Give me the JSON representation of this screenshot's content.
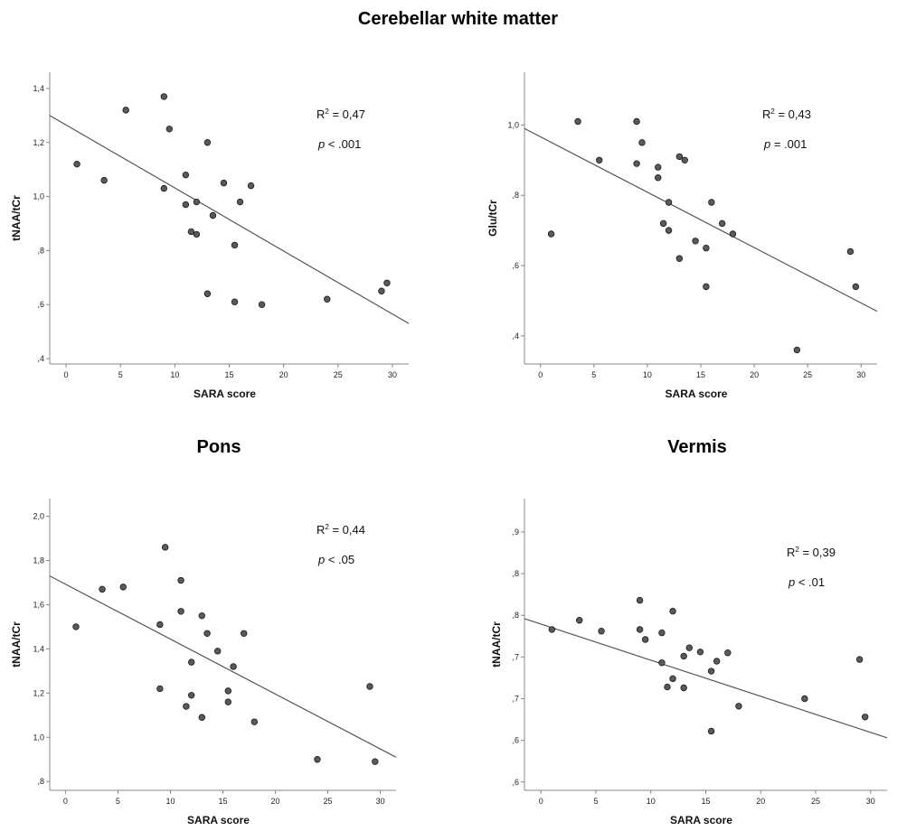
{
  "main_title": "Cerebellar white matter",
  "panel_titles": {
    "pons": "Pons",
    "vermis": "Vermis"
  },
  "chart_data": [
    {
      "type": "scatter",
      "id": "cwm-naa",
      "title": "",
      "xlabel": "SARA score",
      "ylabel": "tNAA/tCr",
      "xlim": [
        -1.5,
        31.5
      ],
      "ylim": [
        0.38,
        1.46
      ],
      "xticks": [
        0,
        5,
        10,
        15,
        20,
        25,
        30
      ],
      "xtick_labels": [
        "0",
        "5",
        "10",
        "15",
        "20",
        "25",
        "30"
      ],
      "yticks": [
        0.4,
        0.6,
        0.8,
        1.0,
        1.2,
        1.4
      ],
      "ytick_labels": [
        ",4",
        ",6",
        ",8",
        "1,0",
        "1,2",
        "1,4"
      ],
      "annotation_r2": "= 0,47",
      "annotation_p": "< .001",
      "fit_line": {
        "x": [
          -1.5,
          31.5
        ],
        "y": [
          1.3,
          0.53
        ]
      },
      "points": [
        {
          "x": 1,
          "y": 1.12
        },
        {
          "x": 3.5,
          "y": 1.06
        },
        {
          "x": 5.5,
          "y": 1.32
        },
        {
          "x": 9,
          "y": 1.37
        },
        {
          "x": 9.5,
          "y": 1.25
        },
        {
          "x": 9,
          "y": 1.03
        },
        {
          "x": 11,
          "y": 1.08
        },
        {
          "x": 11,
          "y": 0.97
        },
        {
          "x": 11.5,
          "y": 0.87
        },
        {
          "x": 12,
          "y": 0.98
        },
        {
          "x": 12,
          "y": 0.86
        },
        {
          "x": 13,
          "y": 1.2
        },
        {
          "x": 13.5,
          "y": 0.93
        },
        {
          "x": 14.5,
          "y": 1.05
        },
        {
          "x": 15.5,
          "y": 0.82
        },
        {
          "x": 16,
          "y": 0.98
        },
        {
          "x": 17,
          "y": 1.04
        },
        {
          "x": 13,
          "y": 0.64
        },
        {
          "x": 15.5,
          "y": 0.61
        },
        {
          "x": 18,
          "y": 0.6
        },
        {
          "x": 24,
          "y": 0.62
        },
        {
          "x": 29,
          "y": 0.65
        },
        {
          "x": 29.5,
          "y": 0.68
        }
      ]
    },
    {
      "type": "scatter",
      "id": "cwm-glu",
      "title": "",
      "xlabel": "SARA score",
      "ylabel": "Glu/tCr",
      "xlim": [
        -1.5,
        31.5
      ],
      "ylim": [
        0.32,
        1.15
      ],
      "xticks": [
        0,
        5,
        10,
        15,
        20,
        25,
        30
      ],
      "xtick_labels": [
        "0",
        "5",
        "10",
        "15",
        "20",
        "25",
        "30"
      ],
      "yticks": [
        0.4,
        0.6,
        0.8,
        1.0
      ],
      "ytick_labels": [
        ",4",
        ",6",
        ",8",
        "1,0"
      ],
      "annotation_r2": "= 0,43",
      "annotation_p": "= .001",
      "fit_line": {
        "x": [
          -1.5,
          31.5
        ],
        "y": [
          0.99,
          0.47
        ]
      },
      "points": [
        {
          "x": 1,
          "y": 0.69
        },
        {
          "x": 3.5,
          "y": 1.01
        },
        {
          "x": 5.5,
          "y": 0.9
        },
        {
          "x": 9,
          "y": 1.01
        },
        {
          "x": 9.5,
          "y": 0.95
        },
        {
          "x": 9,
          "y": 0.89
        },
        {
          "x": 11,
          "y": 0.88
        },
        {
          "x": 11,
          "y": 0.85
        },
        {
          "x": 11.5,
          "y": 0.72
        },
        {
          "x": 12,
          "y": 0.78
        },
        {
          "x": 12,
          "y": 0.7
        },
        {
          "x": 13,
          "y": 0.91
        },
        {
          "x": 13.5,
          "y": 0.9
        },
        {
          "x": 13,
          "y": 0.62
        },
        {
          "x": 14.5,
          "y": 0.67
        },
        {
          "x": 15.5,
          "y": 0.65
        },
        {
          "x": 15.5,
          "y": 0.54
        },
        {
          "x": 16,
          "y": 0.78
        },
        {
          "x": 17,
          "y": 0.72
        },
        {
          "x": 18,
          "y": 0.69
        },
        {
          "x": 24,
          "y": 0.36
        },
        {
          "x": 29,
          "y": 0.64
        },
        {
          "x": 29.5,
          "y": 0.54
        }
      ]
    },
    {
      "type": "scatter",
      "id": "pons-naa",
      "title": "Pons",
      "xlabel": "SARA score",
      "ylabel": "tNAA/tCr",
      "xlim": [
        -1.5,
        31.5
      ],
      "ylim": [
        0.76,
        2.08
      ],
      "xticks": [
        0,
        5,
        10,
        15,
        20,
        25,
        30
      ],
      "xtick_labels": [
        "0",
        "5",
        "10",
        "15",
        "20",
        "25",
        "30"
      ],
      "yticks": [
        0.8,
        1.0,
        1.2,
        1.4,
        1.6,
        1.8,
        2.0
      ],
      "ytick_labels": [
        ",8",
        "1,0",
        "1,2",
        "1,4",
        "1,6",
        "1,8",
        "2,0"
      ],
      "annotation_r2": "= 0,44",
      "annotation_p": "< .05",
      "fit_line": {
        "x": [
          -1.5,
          31.5
        ],
        "y": [
          1.73,
          0.91
        ]
      },
      "points": [
        {
          "x": 1,
          "y": 1.5
        },
        {
          "x": 3.5,
          "y": 1.67
        },
        {
          "x": 5.5,
          "y": 1.68
        },
        {
          "x": 9,
          "y": 1.51
        },
        {
          "x": 9.5,
          "y": 1.86
        },
        {
          "x": 9,
          "y": 1.22
        },
        {
          "x": 11,
          "y": 1.71
        },
        {
          "x": 11,
          "y": 1.57
        },
        {
          "x": 11.5,
          "y": 1.14
        },
        {
          "x": 12,
          "y": 1.34
        },
        {
          "x": 12,
          "y": 1.19
        },
        {
          "x": 13,
          "y": 1.55
        },
        {
          "x": 13.5,
          "y": 1.47
        },
        {
          "x": 13,
          "y": 1.09
        },
        {
          "x": 14.5,
          "y": 1.39
        },
        {
          "x": 15.5,
          "y": 1.21
        },
        {
          "x": 15.5,
          "y": 1.16
        },
        {
          "x": 16,
          "y": 1.32
        },
        {
          "x": 17,
          "y": 1.47
        },
        {
          "x": 18,
          "y": 1.07
        },
        {
          "x": 24,
          "y": 0.9
        },
        {
          "x": 29,
          "y": 1.23
        },
        {
          "x": 29.5,
          "y": 0.89
        }
      ]
    },
    {
      "type": "scatter",
      "id": "vermis-naa",
      "title": "Vermis",
      "xlabel": "SARA score",
      "ylabel": "tNAA/tCr",
      "xlim": [
        -1.5,
        31.5
      ],
      "ylim": [
        0.59,
        0.94
      ],
      "xticks": [
        0,
        5,
        10,
        15,
        20,
        25,
        30
      ],
      "xtick_labels": [
        "0",
        "5",
        "10",
        "15",
        "20",
        "25",
        "30"
      ],
      "yticks": [
        0.6,
        0.65,
        0.7,
        0.75,
        0.8,
        0.85,
        0.9
      ],
      "ytick_labels": [
        ",6",
        ",6",
        ",7",
        ",7",
        ",8",
        ",8",
        ",9"
      ],
      "annotation_r2": "= 0,39",
      "annotation_p": "< .01",
      "fit_line": {
        "x": [
          -1.5,
          31.5
        ],
        "y": [
          0.796,
          0.653
        ]
      },
      "points": [
        {
          "x": 1,
          "y": 0.783
        },
        {
          "x": 3.5,
          "y": 0.794
        },
        {
          "x": 5.5,
          "y": 0.781
        },
        {
          "x": 9,
          "y": 0.818
        },
        {
          "x": 9,
          "y": 0.783
        },
        {
          "x": 9.5,
          "y": 0.771
        },
        {
          "x": 11,
          "y": 0.779
        },
        {
          "x": 11,
          "y": 0.743
        },
        {
          "x": 11.5,
          "y": 0.714
        },
        {
          "x": 12,
          "y": 0.805
        },
        {
          "x": 12,
          "y": 0.724
        },
        {
          "x": 13,
          "y": 0.751
        },
        {
          "x": 13,
          "y": 0.713
        },
        {
          "x": 13.5,
          "y": 0.761
        },
        {
          "x": 14.5,
          "y": 0.756
        },
        {
          "x": 15.5,
          "y": 0.733
        },
        {
          "x": 15.5,
          "y": 0.661
        },
        {
          "x": 16,
          "y": 0.745
        },
        {
          "x": 17,
          "y": 0.755
        },
        {
          "x": 18,
          "y": 0.691
        },
        {
          "x": 24,
          "y": 0.7
        },
        {
          "x": 29,
          "y": 0.747
        },
        {
          "x": 29.5,
          "y": 0.678
        }
      ]
    }
  ],
  "colors": {
    "point_fill": "#5a5a5a",
    "point_stroke": "#1a1a1a",
    "line": "#555555",
    "axis": "#888888"
  }
}
